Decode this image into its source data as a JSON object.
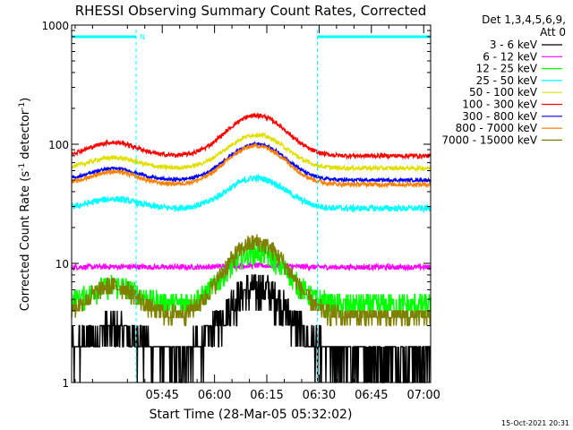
{
  "chart_data": {
    "type": "line",
    "title": "RHESSI Observing Summary Count Rates, Corrected",
    "xlabel": "Start Time (28-Mar-05 05:32:02)",
    "ylabel": "Corrected Count Rate (s⁻¹ detector⁻¹)",
    "ylabel_parts": {
      "a": "Corrected Count Rate (s",
      "sup1": "-1",
      "b": " detector",
      "sup2": "-1",
      "c": ")"
    },
    "yscale": "log",
    "ylim": [
      1,
      1000
    ],
    "xlim_minutes": [
      -13,
      90
    ],
    "x_start_time": "05:32:02",
    "x_ticks": [
      "05:45",
      "06:00",
      "06:15",
      "06:30",
      "06:45",
      "07:00"
    ],
    "y_ticks": [
      "1",
      "10",
      "100",
      "1000"
    ],
    "legend_header": [
      "Det 1,3,4,5,6,9,",
      "Att 0"
    ],
    "timestamp": "15-Oct-2021 20:31",
    "annotation": "N",
    "night_intervals_minutes": [
      [
        -13,
        5.5
      ],
      [
        57.5,
        90
      ]
    ],
    "series": [
      {
        "name": "3 - 6 keV",
        "color": "#000000",
        "base": 1.7,
        "peak": 6.2,
        "noise": 0.25
      },
      {
        "name": "6 - 12 keV",
        "color": "#ff00ff",
        "base": 9.3,
        "peak": 9.6,
        "noise": 0.05
      },
      {
        "name": "12 - 25 keV",
        "color": "#00ff00",
        "base": 4.5,
        "peak": 12.5,
        "noise": 0.15
      },
      {
        "name": "25 - 50 keV",
        "color": "#00ffff",
        "base": 29,
        "peak": 52,
        "noise": 0.06
      },
      {
        "name": "50 - 100 keV",
        "color": "#e0e000",
        "base": 63,
        "peak": 120,
        "noise": 0.04
      },
      {
        "name": "100 - 300 keV",
        "color": "#ff0000",
        "base": 80,
        "peak": 175,
        "noise": 0.04
      },
      {
        "name": "300 - 800 keV",
        "color": "#0000ff",
        "base": 50,
        "peak": 100,
        "noise": 0.03
      },
      {
        "name": "800 - 7000 keV",
        "color": "#ff8000",
        "base": 46,
        "peak": 97,
        "noise": 0.04
      },
      {
        "name": "7000 - 15000 keV",
        "color": "#808000",
        "base": 3.6,
        "peak": 15,
        "noise": 0.12
      }
    ]
  }
}
